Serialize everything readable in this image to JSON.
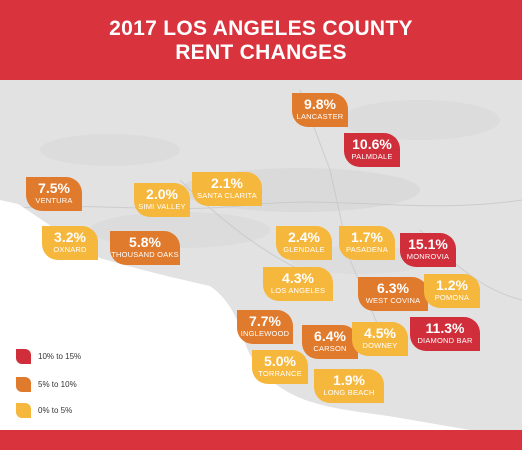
{
  "title": {
    "line1": "2017 LOS ANGELES COUNTY",
    "line2": "RENT CHANGES"
  },
  "colors": {
    "header": "#d9333d",
    "high": "#cf2e3a",
    "mid": "#e07a2c",
    "low": "#f6b73d",
    "map_land": "#e2e2e2",
    "map_sea": "#ffffff"
  },
  "cities": [
    {
      "name": "LANCASTER",
      "change": "9.8%",
      "tier": "mid"
    },
    {
      "name": "PALMDALE",
      "change": "10.6%",
      "tier": "high"
    },
    {
      "name": "VENTURA",
      "change": "7.5%",
      "tier": "mid"
    },
    {
      "name": "SIMI VALLEY",
      "change": "2.0%",
      "tier": "low"
    },
    {
      "name": "SANTA CLARITA",
      "change": "2.1%",
      "tier": "low"
    },
    {
      "name": "OXNARD",
      "change": "3.2%",
      "tier": "low"
    },
    {
      "name": "THOUSAND OAKS",
      "change": "5.8%",
      "tier": "mid"
    },
    {
      "name": "GLENDALE",
      "change": "2.4%",
      "tier": "low"
    },
    {
      "name": "PASADENA",
      "change": "1.7%",
      "tier": "low"
    },
    {
      "name": "MONROVIA",
      "change": "15.1%",
      "tier": "high"
    },
    {
      "name": "LOS ANGELES",
      "change": "4.3%",
      "tier": "low"
    },
    {
      "name": "WEST COVINA",
      "change": "6.3%",
      "tier": "mid"
    },
    {
      "name": "POMONA",
      "change": "1.2%",
      "tier": "low"
    },
    {
      "name": "INGLEWOOD",
      "change": "7.7%",
      "tier": "mid"
    },
    {
      "name": "CARSON",
      "change": "6.4%",
      "tier": "mid"
    },
    {
      "name": "DOWNEY",
      "change": "4.5%",
      "tier": "low"
    },
    {
      "name": "DIAMOND BAR",
      "change": "11.3%",
      "tier": "high"
    },
    {
      "name": "TORRANCE",
      "change": "5.0%",
      "tier": "low"
    },
    {
      "name": "LONG BEACH",
      "change": "1.9%",
      "tier": "low"
    }
  ],
  "legend": [
    {
      "label": "10% to 15%",
      "tier": "high"
    },
    {
      "label": "5% to 10%",
      "tier": "mid"
    },
    {
      "label": "0% to 5%",
      "tier": "low"
    }
  ]
}
